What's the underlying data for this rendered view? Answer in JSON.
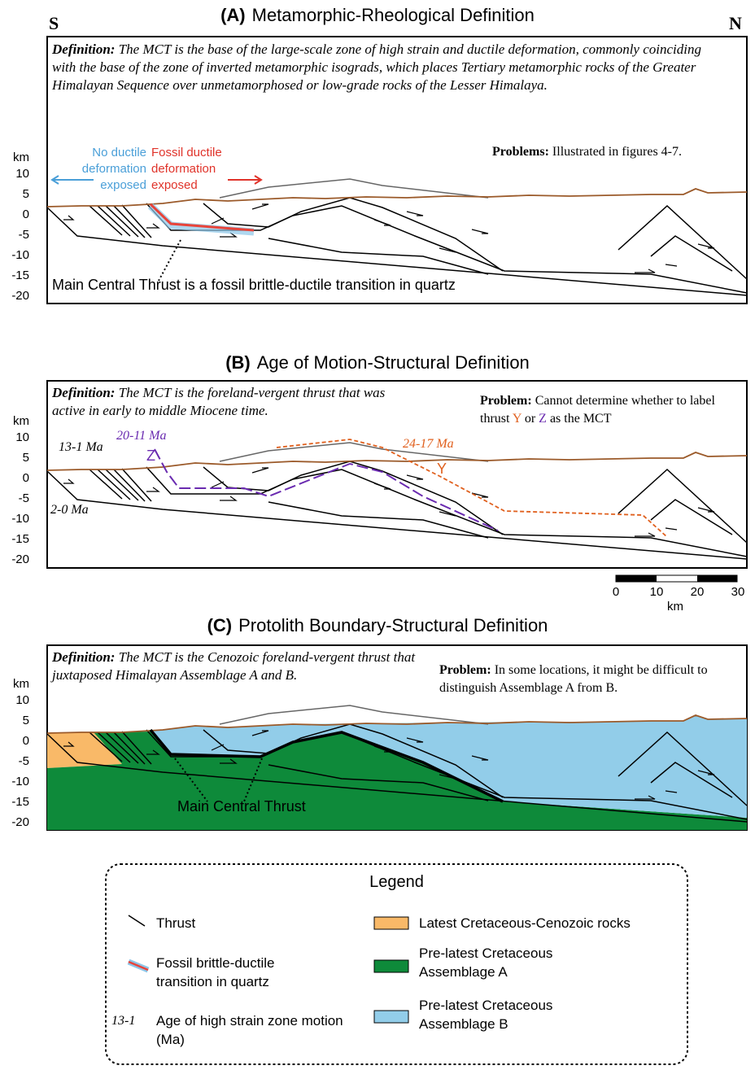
{
  "panels": [
    {
      "letter": "(A)",
      "title": "Metamorphic-Rheological Definition",
      "definition_label": "Definition:",
      "definition": "The MCT is the base of the large-scale zone of high strain and ductile deformation, commonly coinciding with the base of the zone of inverted metamorphic isograds, which places Tertiary metamorphic rocks of the Greater Himalayan Sequence over unmetamorphosed or low-grade rocks of the Lesser Himalaya.",
      "problem_label": "Problems:",
      "problem": [
        "Illustrated in figures 4-7."
      ],
      "y_unit": "km",
      "y_ticks": [
        "10",
        "5",
        "0",
        "-5",
        "-10",
        "-15",
        "-20"
      ],
      "south": "S",
      "north": "N",
      "no_ductile": "No ductile deformation exposed",
      "fossil_ductile": "Fossil ductile deformation exposed",
      "callout": "Main Central Thrust is a fossil brittle-ductile transition in quartz"
    },
    {
      "letter": "(B)",
      "title": "Age of Motion-Structural Definition",
      "definition_label": "Definition:",
      "definition": "The MCT is the foreland-vergent thrust that was active in early to middle Miocene time.",
      "problem_label": "Problem:",
      "problem": [
        "Cannot determine whether to label thrust ",
        "Y",
        " or ",
        "Z",
        " as the MCT"
      ],
      "y_unit": "km",
      "y_ticks": [
        "10",
        "5",
        "0",
        "-5",
        "-10",
        "-15",
        "-20"
      ],
      "age_a": "13-1 Ma",
      "age_z": "20-11 Ma",
      "label_z": "Z",
      "age_y": "24-17 Ma",
      "label_y": "Y",
      "age_b": "2-0 Ma",
      "scale_ticks": [
        "0",
        "10",
        "20",
        "30"
      ],
      "scale_unit": "km"
    },
    {
      "letter": "(C)",
      "title": "Protolith Boundary-Structural Definition",
      "definition_label": "Definition:",
      "definition": "The MCT is the Cenozoic foreland-vergent thrust that juxtaposed Himalayan Assemblage A and B.",
      "problem_label": "Problem:",
      "problem": [
        "In some locations, it might be difficult to distinguish Assemblage A from B."
      ],
      "y_unit": "km",
      "y_ticks": [
        "10",
        "5",
        "0",
        "-5",
        "-10",
        "-15",
        "-20"
      ],
      "callout": "Main Central Thrust"
    }
  ],
  "legend": {
    "title": "Legend",
    "thrust": "Thrust",
    "fossil": "Fossil brittle-ductile transition in quartz",
    "age_sample": "13-1",
    "age": "Age of high strain zone motion (Ma)",
    "orange": "Latest Cretaceous-Cenozoic rocks",
    "green": "Pre-latest Cretaceous Assemblage A",
    "blue": "Pre-latest Cretaceous Assemblage B"
  }
}
